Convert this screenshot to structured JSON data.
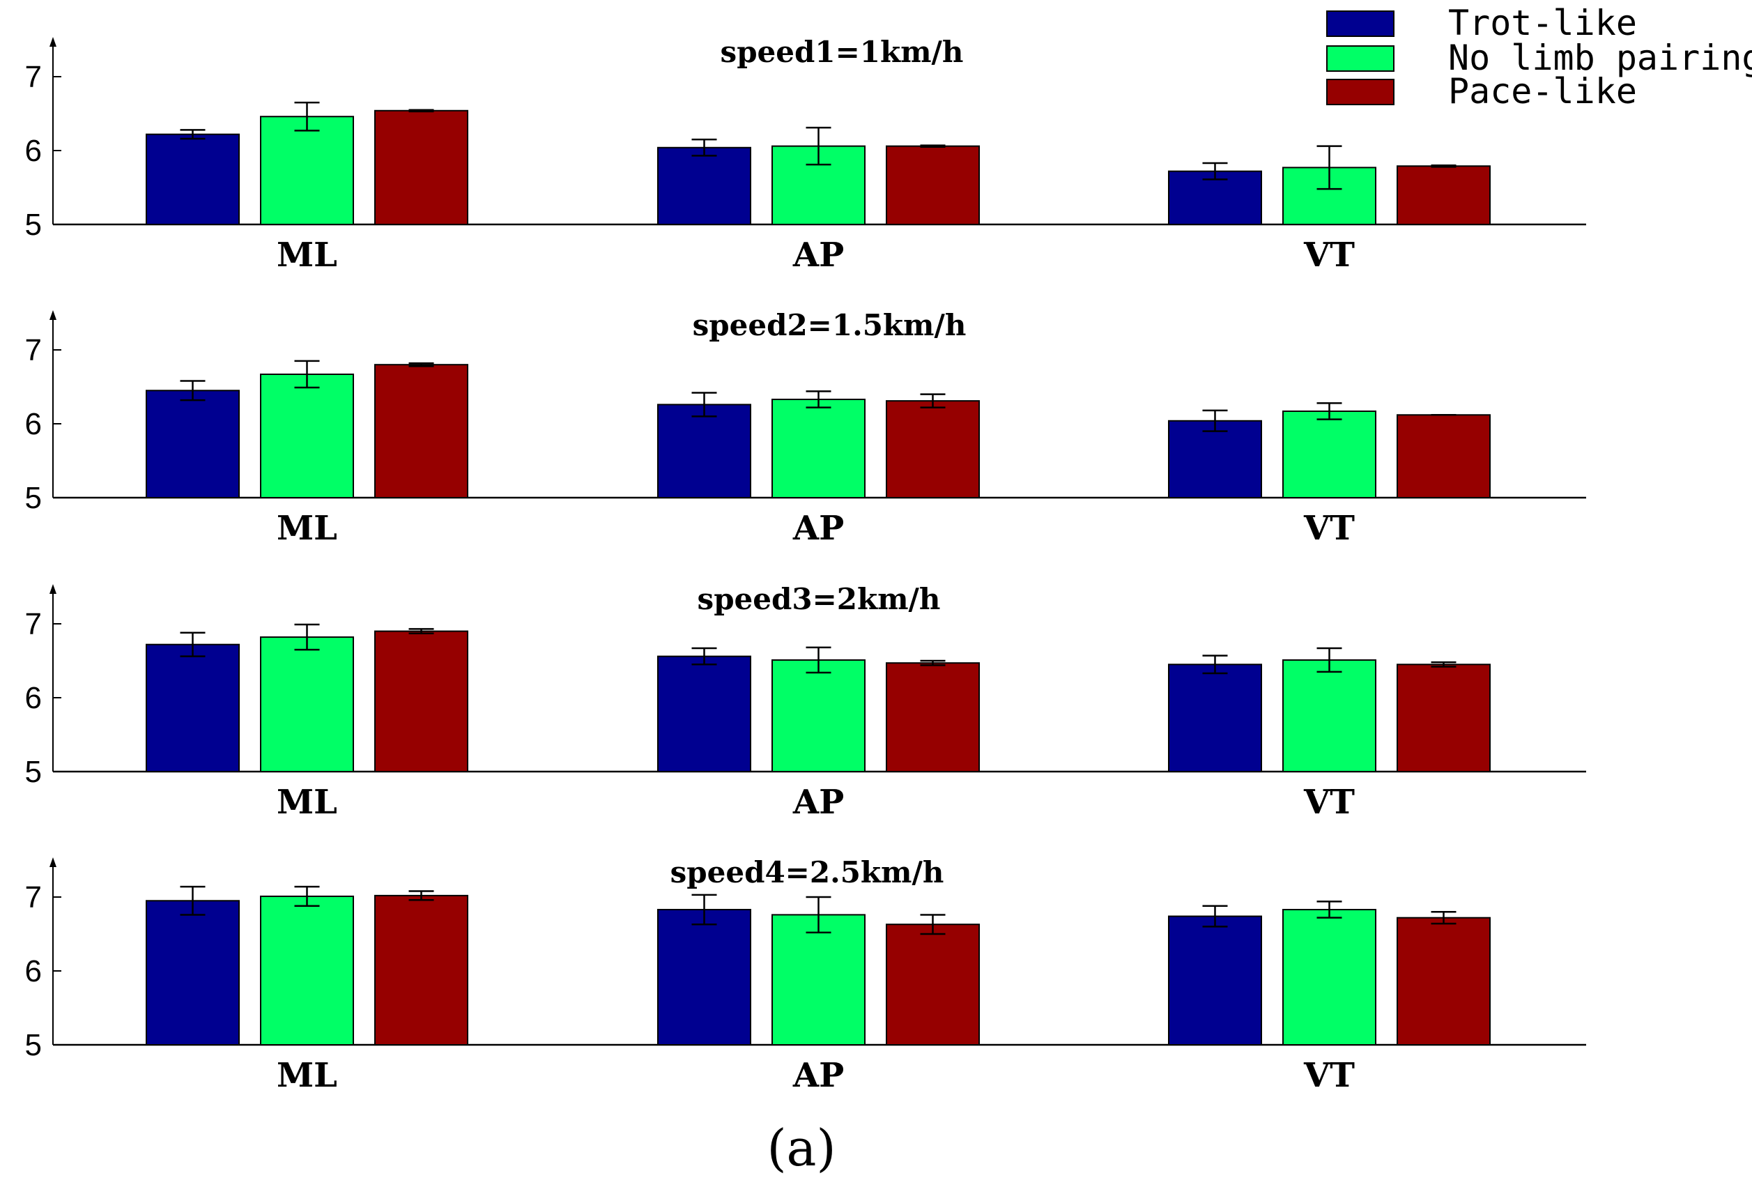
{
  "legend": {
    "items": [
      {
        "label": "Trot-like",
        "color": "#000090"
      },
      {
        "label": "No limb pairing",
        "color": "#00FF66"
      },
      {
        "label": "Pace-like",
        "color": "#960000"
      }
    ]
  },
  "caption": "(a)",
  "chart_data": [
    {
      "type": "bar",
      "title": "speed1=1km/h",
      "categories": [
        "ML",
        "AP",
        "VT"
      ],
      "ylim": [
        5,
        7.5
      ],
      "yticks": [
        5,
        6,
        7
      ],
      "series": [
        {
          "name": "Trot-like",
          "values": [
            6.22,
            6.04,
            5.72
          ],
          "errors": [
            0.06,
            0.11,
            0.11
          ]
        },
        {
          "name": "No limb pairing",
          "values": [
            6.46,
            6.06,
            5.77
          ],
          "errors": [
            0.19,
            0.25,
            0.29
          ]
        },
        {
          "name": "Pace-like",
          "values": [
            6.54,
            6.06,
            5.79
          ],
          "errors": [
            0.01,
            0.01,
            0.01
          ]
        }
      ]
    },
    {
      "type": "bar",
      "title": "speed2=1.5km/h",
      "categories": [
        "ML",
        "AP",
        "VT"
      ],
      "ylim": [
        5,
        7.5
      ],
      "yticks": [
        5,
        6,
        7
      ],
      "series": [
        {
          "name": "Trot-like",
          "values": [
            6.45,
            6.26,
            6.04
          ],
          "errors": [
            0.13,
            0.16,
            0.14
          ]
        },
        {
          "name": "No limb pairing",
          "values": [
            6.67,
            6.33,
            6.17
          ],
          "errors": [
            0.18,
            0.11,
            0.11
          ]
        },
        {
          "name": "Pace-like",
          "values": [
            6.8,
            6.31,
            6.12
          ],
          "errors": [
            0.02,
            0.09,
            0.0
          ]
        }
      ]
    },
    {
      "type": "bar",
      "title": "speed3=2km/h",
      "categories": [
        "ML",
        "AP",
        "VT"
      ],
      "ylim": [
        5,
        7.5
      ],
      "yticks": [
        5,
        6,
        7
      ],
      "series": [
        {
          "name": "Trot-like",
          "values": [
            6.72,
            6.56,
            6.45
          ],
          "errors": [
            0.16,
            0.11,
            0.12
          ]
        },
        {
          "name": "No limb pairing",
          "values": [
            6.82,
            6.51,
            6.51
          ],
          "errors": [
            0.17,
            0.17,
            0.16
          ]
        },
        {
          "name": "Pace-like",
          "values": [
            6.9,
            6.47,
            6.45
          ],
          "errors": [
            0.03,
            0.03,
            0.03
          ]
        }
      ]
    },
    {
      "type": "bar",
      "title": "speed4=2.5km/h",
      "categories": [
        "ML",
        "AP",
        "VT"
      ],
      "ylim": [
        5,
        7.5
      ],
      "yticks": [
        5,
        6,
        7
      ],
      "series": [
        {
          "name": "Trot-like",
          "values": [
            6.95,
            6.83,
            6.74
          ],
          "errors": [
            0.19,
            0.2,
            0.14
          ]
        },
        {
          "name": "No limb pairing",
          "values": [
            7.01,
            6.76,
            6.83
          ],
          "errors": [
            0.13,
            0.24,
            0.11
          ]
        },
        {
          "name": "Pace-like",
          "values": [
            7.02,
            6.63,
            6.72
          ],
          "errors": [
            0.06,
            0.13,
            0.08
          ]
        }
      ]
    }
  ]
}
